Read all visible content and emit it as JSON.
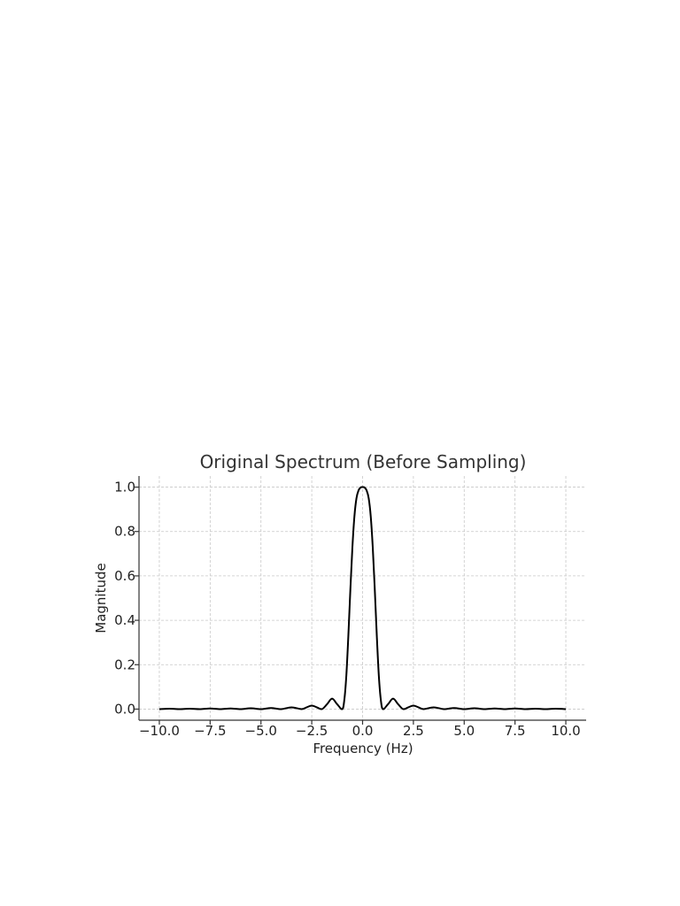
{
  "chart_data": {
    "type": "line",
    "title": "Original Spectrum (Before Sampling)",
    "xlabel": "Frequency (Hz)",
    "ylabel": "Magnitude",
    "xlim": [
      -11,
      11
    ],
    "ylim": [
      -0.05,
      1.05
    ],
    "xticks": [
      -10,
      -7.5,
      -5,
      -2.5,
      0,
      2.5,
      5,
      7.5,
      10
    ],
    "xtick_labels": [
      "−10.0",
      "−7.5",
      "−5.0",
      "−2.5",
      "0.0",
      "2.5",
      "5.0",
      "7.5",
      "10.0"
    ],
    "yticks": [
      0,
      0.2,
      0.4,
      0.6,
      0.8,
      1.0
    ],
    "ytick_labels": [
      "0.0",
      "0.2",
      "0.4",
      "0.6",
      "0.8",
      "1.0"
    ],
    "grid": true,
    "line_color": "#000000",
    "series": [
      {
        "x": [
          -10,
          -9.5,
          -9,
          -8.5,
          -8,
          -7.5,
          -7,
          -6.5,
          -6,
          -5.5,
          -5,
          -4.5,
          -4,
          -3.5,
          -3,
          -2.75,
          -2.5,
          -2.25,
          -2,
          -1.75,
          -1.5,
          -1.25,
          -1,
          -0.9,
          -0.8,
          -0.7,
          -0.6,
          -0.5,
          -0.4,
          -0.3,
          -0.2,
          -0.1,
          0,
          0.1,
          0.2,
          0.3,
          0.4,
          0.5,
          0.6,
          0.7,
          0.8,
          0.9,
          1,
          1.25,
          1.5,
          1.75,
          2,
          2.25,
          2.5,
          2.75,
          3,
          3.5,
          4,
          4.5,
          5,
          5.5,
          6,
          6.5,
          7,
          7.5,
          8,
          8.5,
          9,
          9.5,
          10
        ],
        "y": [
          0.0,
          0.002,
          0.0,
          0.002,
          0.0,
          0.003,
          0.0,
          0.003,
          0.0,
          0.004,
          0.0,
          0.005,
          0.0,
          0.008,
          0.0,
          0.008,
          0.016,
          0.008,
          0.0,
          0.022,
          0.047,
          0.022,
          0.0,
          0.04,
          0.15,
          0.33,
          0.54,
          0.73,
          0.87,
          0.95,
          0.985,
          0.998,
          1.0,
          0.998,
          0.985,
          0.95,
          0.87,
          0.73,
          0.54,
          0.33,
          0.15,
          0.04,
          0.0,
          0.022,
          0.047,
          0.022,
          0.0,
          0.008,
          0.016,
          0.008,
          0.0,
          0.008,
          0.0,
          0.005,
          0.0,
          0.004,
          0.0,
          0.003,
          0.0,
          0.003,
          0.0,
          0.002,
          0.0,
          0.002,
          0.0
        ]
      }
    ]
  }
}
